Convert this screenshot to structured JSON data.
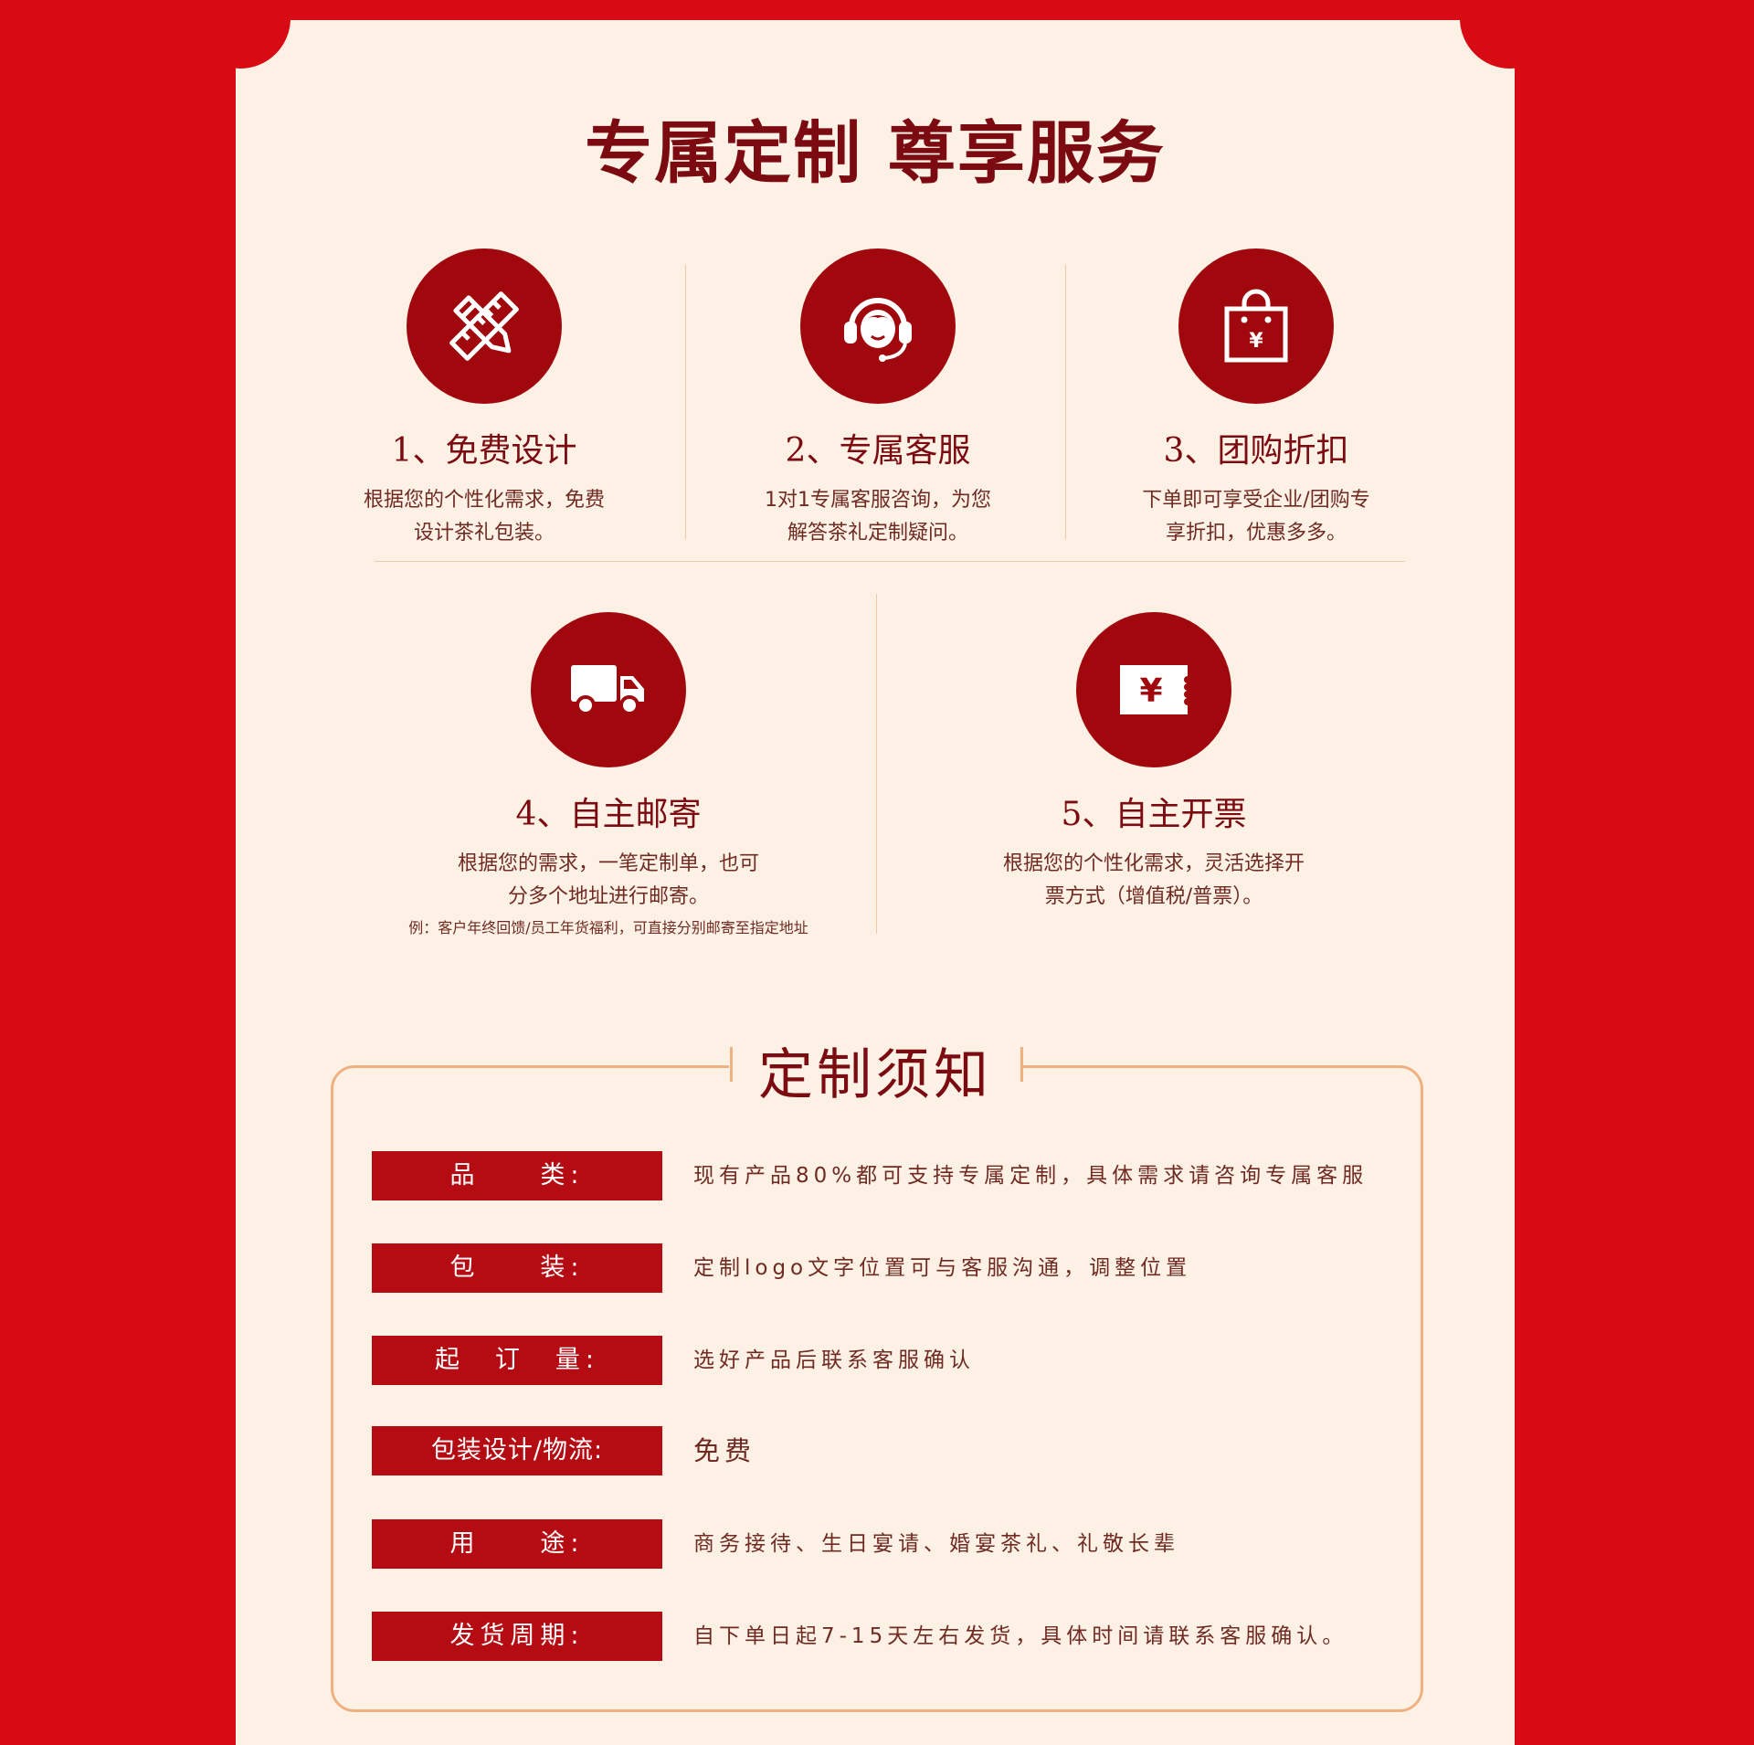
{
  "header": {
    "title": "专属定制 尊享服务"
  },
  "services": [
    {
      "number_title": "1、免费设计",
      "desc": [
        "根据您的个性化需求，免费",
        "设计茶礼包装。"
      ],
      "icon": "pencil-ruler-icon"
    },
    {
      "number_title": "2、专属客服",
      "desc": [
        "1对1专属客服咨询，为您",
        "解答茶礼定制疑问。"
      ],
      "icon": "headset-icon"
    },
    {
      "number_title": "3、团购折扣",
      "desc": [
        "下单即可享受企业/团购专",
        "享折扣，优惠多多。"
      ],
      "icon": "shopping-bag-yen-icon"
    },
    {
      "number_title": "4、自主邮寄",
      "desc": [
        "根据您的需求，一笔定制单，也可",
        "分多个地址进行邮寄。"
      ],
      "note": "例：客户年终回馈/员工年货福利，可直接分别邮寄至指定地址",
      "icon": "truck-icon"
    },
    {
      "number_title": "5、自主开票",
      "desc": [
        "根据您的个性化需求，灵活选择开",
        "票方式（增值税/普票）。"
      ],
      "icon": "invoice-yen-icon"
    }
  ],
  "notice": {
    "title": "定制须知",
    "rows": [
      {
        "label": "品　　类:",
        "value": "现有产品80%都可支持专属定制，具体需求请咨询专属客服"
      },
      {
        "label": "包　　装:",
        "value": "定制logo文字位置可与客服沟通，调整位置"
      },
      {
        "label": "起　订　量:",
        "value": "选好产品后联系客服确认"
      },
      {
        "label": "包装设计/物流:",
        "value": "免费"
      },
      {
        "label": "用　　途:",
        "value": "商务接待、生日宴请、婚宴茶礼、礼敬长辈"
      },
      {
        "label": "发货周期:",
        "value": "自下单日起7-15天左右发货，具体时间请联系客服确认。"
      }
    ]
  },
  "colors": {
    "page_red": "#d80a14",
    "card_bg": "#fdf1e6",
    "icon_red": "#a1080e",
    "title_dark_red": "#7b0b10",
    "label_red": "#b50c14",
    "line_orange": "#efb181"
  }
}
